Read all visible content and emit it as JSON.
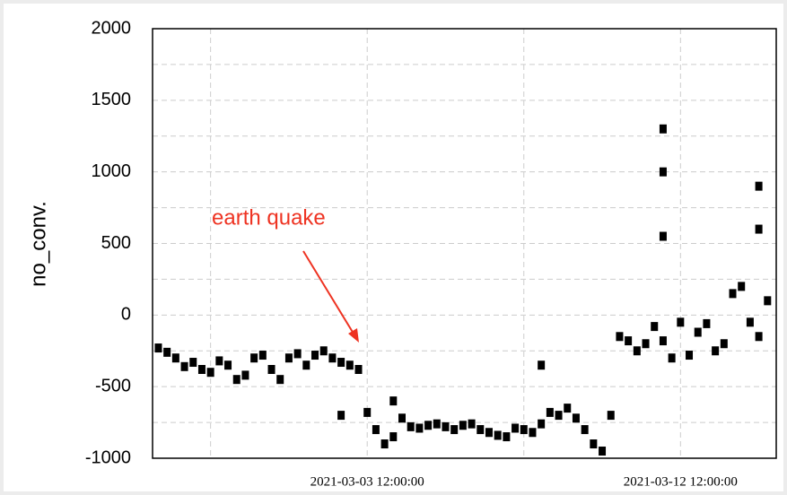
{
  "chart_data": {
    "type": "scatter",
    "y_label": "no_conv.",
    "annotation": "earth quake",
    "color": "#000000",
    "annotation_color": "#ee3322",
    "grid": true,
    "xlim": [
      "2021-02-25 08:00:00",
      "2021-03-15 06:00:00"
    ],
    "xticks": [
      {
        "value": "2021-02-27 00:00:00",
        "label": null
      },
      "2021-03-03 12:00:00",
      {
        "value": "2021-03-08 00:00:00",
        "label": null
      },
      "2021-03-12 12:00:00"
    ],
    "ylim": [
      -1000,
      2000
    ],
    "yticks": [
      -1000,
      -500,
      0,
      500,
      1000,
      1500,
      2000
    ],
    "yminorticks": [
      -750,
      -250,
      250,
      750,
      1250,
      1750
    ],
    "x": [
      "2021-02-25 12:00:00",
      "2021-02-25 18:00:00",
      "2021-02-26 00:00:00",
      "2021-02-26 06:00:00",
      "2021-02-26 12:00:00",
      "2021-02-26 18:00:00",
      "2021-02-27 00:00:00",
      "2021-02-27 06:00:00",
      "2021-02-27 12:00:00",
      "2021-02-27 18:00:00",
      "2021-02-28 00:00:00",
      "2021-02-28 06:00:00",
      "2021-02-28 12:00:00",
      "2021-02-28 18:00:00",
      "2021-03-01 00:00:00",
      "2021-03-01 06:00:00",
      "2021-03-01 12:00:00",
      "2021-03-01 18:00:00",
      "2021-03-02 00:00:00",
      "2021-03-02 06:00:00",
      "2021-03-02 12:00:00",
      "2021-03-02 18:00:00",
      "2021-03-03 00:00:00",
      "2021-03-03 06:00:00",
      "2021-03-03 12:00:00",
      "2021-03-03 18:00:00",
      "2021-03-04 00:00:00",
      "2021-03-04 06:00:00",
      "2021-03-04 12:00:00",
      "2021-03-04 18:00:00",
      "2021-03-05 00:00:00",
      "2021-03-05 06:00:00",
      "2021-03-05 12:00:00",
      "2021-03-05 18:00:00",
      "2021-03-06 00:00:00",
      "2021-03-06 06:00:00",
      "2021-03-06 12:00:00",
      "2021-03-06 18:00:00",
      "2021-03-07 00:00:00",
      "2021-03-07 06:00:00",
      "2021-03-07 12:00:00",
      "2021-03-07 18:00:00",
      "2021-03-08 00:00:00",
      "2021-03-08 06:00:00",
      "2021-03-08 12:00:00",
      "2021-03-08 18:00:00",
      "2021-03-09 00:00:00",
      "2021-03-09 06:00:00",
      "2021-03-09 12:00:00",
      "2021-03-09 18:00:00",
      "2021-03-10 00:00:00",
      "2021-03-10 06:00:00",
      "2021-03-10 12:00:00",
      "2021-03-10 18:00:00",
      "2021-03-11 00:00:00",
      "2021-03-11 06:00:00",
      "2021-03-11 12:00:00",
      "2021-03-11 18:00:00",
      "2021-03-12 00:00:00",
      "2021-03-12 06:00:00",
      "2021-03-12 12:00:00",
      "2021-03-12 18:00:00",
      "2021-03-13 00:00:00",
      "2021-03-13 06:00:00",
      "2021-03-13 12:00:00",
      "2021-03-13 18:00:00",
      "2021-03-14 00:00:00",
      "2021-03-14 06:00:00",
      "2021-03-14 12:00:00",
      "2021-03-14 18:00:00",
      "2021-03-15 00:00:00",
      "2021-03-02 18:00:00",
      "2021-03-04 06:00:00",
      "2021-03-08 12:00:00",
      "2021-03-12 00:00:00",
      "2021-03-12 00:00:00",
      "2021-03-12 00:00:00",
      "2021-03-14 18:00:00",
      "2021-03-14 18:00:00"
    ],
    "values": [
      -230,
      -260,
      -300,
      -360,
      -330,
      -380,
      -400,
      -320,
      -350,
      -450,
      -420,
      -300,
      -280,
      -380,
      -450,
      -300,
      -270,
      -350,
      -280,
      -250,
      -300,
      -330,
      -350,
      -380,
      -680,
      -800,
      -900,
      -850,
      -720,
      -780,
      -790,
      -770,
      -760,
      -780,
      -800,
      -770,
      -760,
      -800,
      -820,
      -840,
      -850,
      -790,
      -800,
      -820,
      -760,
      -680,
      -700,
      -650,
      -720,
      -800,
      -900,
      -950,
      -700,
      -150,
      -180,
      -250,
      -200,
      -80,
      -180,
      -300,
      -50,
      -280,
      -120,
      -60,
      -250,
      -200,
      150,
      200,
      -50,
      -150,
      100,
      -700,
      -600,
      -350,
      1300,
      1000,
      550,
      900,
      600
    ]
  }
}
